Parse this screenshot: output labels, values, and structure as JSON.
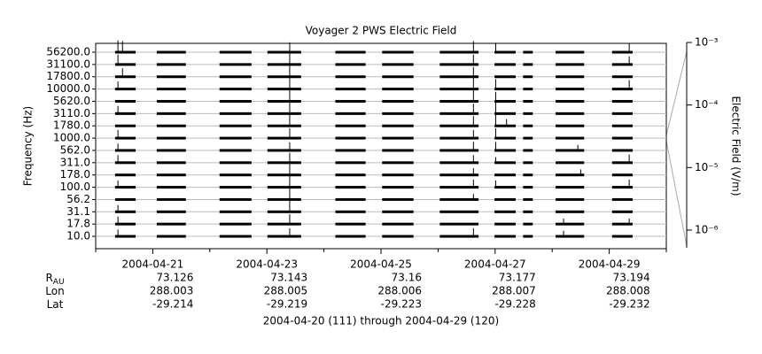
{
  "chart_data": {
    "type": "spectrum-stack",
    "title": "Voyager 2 PWS Electric Field",
    "ylabel": "Frequency (Hz)",
    "y2label": "Electric Field (V/m)",
    "color": "#000000",
    "grid": true,
    "categories": [
      "56200.0",
      "31100.0",
      "17800.0",
      "10000.0",
      "5620.0",
      "3110.0",
      "1780.0",
      "1000.0",
      "562.0",
      "311.0",
      "178.0",
      "100.0",
      "56.2",
      "31.1",
      "17.8",
      "10.0"
    ],
    "xlim": [
      111,
      121
    ],
    "xticks": [
      {
        "value": 112,
        "label": "2004-04-21"
      },
      {
        "value": 114,
        "label": "2004-04-23"
      },
      {
        "value": 116,
        "label": "2004-04-25"
      },
      {
        "value": 118,
        "label": "2004-04-27"
      },
      {
        "value": 120,
        "label": "2004-04-29"
      }
    ],
    "xminorticks": [
      111,
      113,
      115,
      117,
      119,
      121
    ],
    "y2lim": [
      5.2e-07,
      0.001
    ],
    "y2log": true,
    "y2ticks": [
      {
        "value": 0.001,
        "label": "10⁻³"
      },
      {
        "value": 0.0001,
        "label": "10⁻⁴"
      },
      {
        "value": 1e-05,
        "label": "10⁻⁵"
      },
      {
        "value": 1e-06,
        "label": "10⁻⁶"
      }
    ],
    "intervals": [
      [
        111.34,
        111.7
      ],
      [
        112.07,
        112.58
      ],
      [
        113.17,
        113.73
      ],
      [
        114.01,
        114.6
      ],
      [
        115.2,
        115.73
      ],
      [
        116.02,
        116.57
      ],
      [
        117.03,
        117.71
      ],
      [
        117.99,
        118.36
      ],
      [
        118.49,
        118.66
      ],
      [
        119.06,
        119.56
      ],
      [
        120.05,
        120.41
      ]
    ],
    "series": [
      {
        "x": [
          111.39,
          111.47,
          114.4,
          117.62,
          118.01,
          120.35
        ],
        "values": [
          0.0003,
          0.0002,
          0.0001,
          0.0002,
          8e-05,
          5e-05
        ]
      },
      {
        "x": [
          111.39,
          114.4,
          117.62,
          120.35
        ],
        "values": [
          0.0001,
          0.0003,
          0.0001,
          4e-05
        ]
      },
      {
        "x": [
          111.47,
          114.4,
          117.62
        ],
        "values": [
          5e-05,
          0.0002,
          0.0001
        ]
      },
      {
        "x": [
          111.39,
          114.4,
          117.62,
          118.01,
          120.35
        ],
        "values": [
          3e-05,
          0.0003,
          0.0003,
          0.0001,
          6e-05
        ]
      },
      {
        "x": [
          114.4,
          117.62,
          118.01
        ],
        "values": [
          0.0002,
          0.0002,
          8e-05
        ]
      },
      {
        "x": [
          111.39,
          114.4,
          117.62,
          118.01
        ],
        "values": [
          3e-05,
          0.0004,
          0.0001,
          0.0003
        ]
      },
      {
        "x": [
          114.4,
          117.62,
          118.01,
          118.2
        ],
        "values": [
          0.0002,
          0.0001,
          0.0002,
          2e-05
        ]
      },
      {
        "x": [
          111.39,
          114.4,
          117.62,
          118.01
        ],
        "values": [
          4e-05,
          0.0001,
          4e-05,
          0.0001
        ]
      },
      {
        "x": [
          111.39,
          114.4,
          117.62,
          118.01,
          119.45
        ],
        "values": [
          2e-05,
          4e-05,
          5e-05,
          5e-05,
          1e-05
        ]
      },
      {
        "x": [
          111.39,
          114.4,
          117.62,
          118.01,
          120.35
        ],
        "values": [
          3e-05,
          0.0001,
          3e-05,
          1e-05,
          4e-05
        ]
      },
      {
        "x": [
          114.4,
          117.62,
          119.5
        ],
        "values": [
          0.0003,
          2e-05,
          1e-05
        ]
      },
      {
        "x": [
          111.39,
          114.4,
          117.62,
          118.01,
          120.35
        ],
        "values": [
          2e-05,
          0.0002,
          3e-05,
          2e-05,
          3e-05
        ]
      },
      {
        "x": [
          114.4,
          117.62
        ],
        "values": [
          0.0003,
          1e-05
        ]
      },
      {
        "x": [
          111.39,
          114.4
        ],
        "values": [
          2e-05,
          0.0003
        ]
      },
      {
        "x": [
          111.39,
          114.4,
          119.2,
          120.35
        ],
        "values": [
          3e-05,
          0.0001,
          1e-05,
          1e-05
        ]
      },
      {
        "x": [
          111.39,
          114.4,
          117.62,
          119.2
        ],
        "values": [
          2e-05,
          4e-05,
          4e-05,
          1e-05
        ]
      }
    ],
    "ephemeris": {
      "rows": [
        {
          "label": "R",
          "sub": "AU",
          "values": [
            73.126,
            73.143,
            73.16,
            73.177,
            73.194
          ]
        },
        {
          "label": "Lon",
          "values": [
            288.003,
            288.005,
            288.006,
            288.007,
            288.008
          ]
        },
        {
          "label": "Lat",
          "values": [
            -29.214,
            -29.219,
            -29.223,
            -29.228,
            -29.232
          ]
        }
      ]
    },
    "footer": "2004-04-20 (111) through 2004-04-29 (120)"
  }
}
